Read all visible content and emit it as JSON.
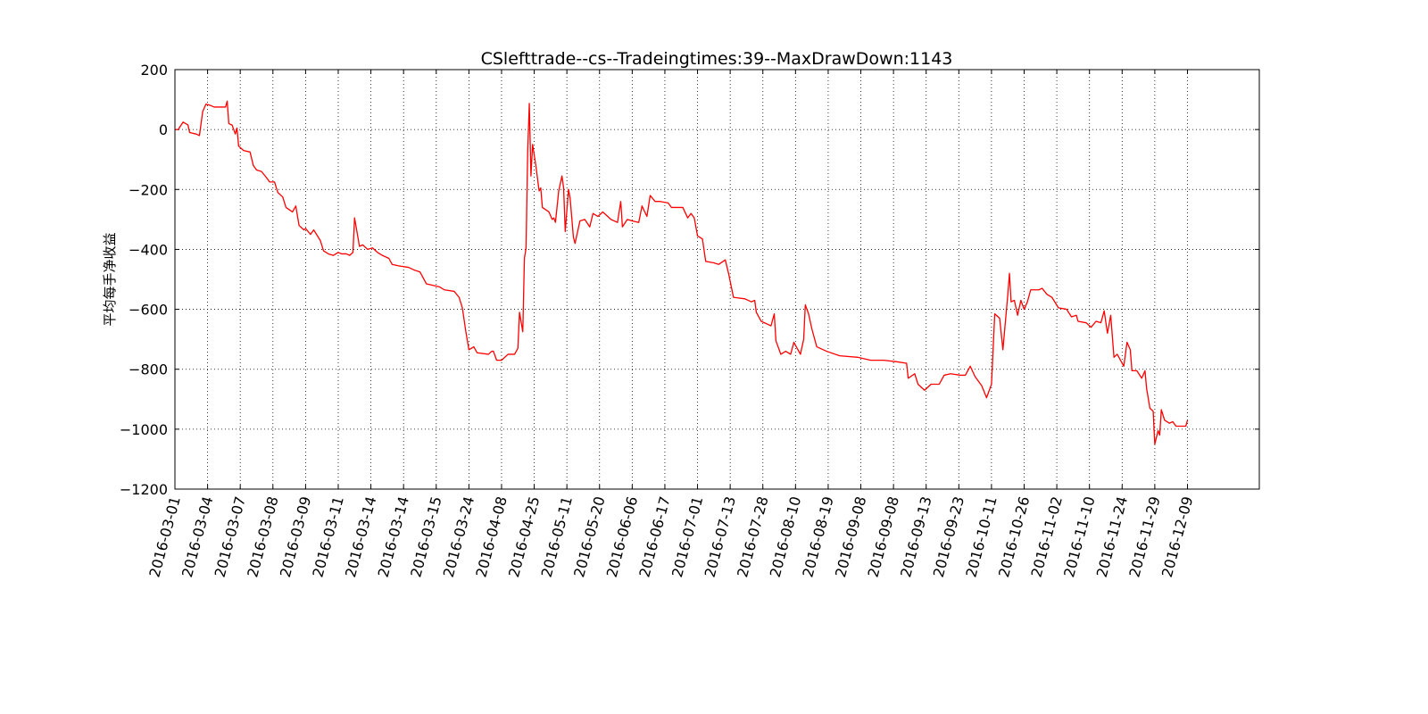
{
  "chart_data": {
    "type": "line",
    "title": "CSlefttrade--cs--Tradeingtimes:39--MaxDrawDown:1143",
    "y_label": "平均每手净收益",
    "color": "#ff0000",
    "grid": true,
    "xlim": [
      0,
      664
    ],
    "ylim": [
      -1200,
      200
    ],
    "yticks": [
      {
        "value": -1200,
        "label": "−1200"
      },
      {
        "value": -1000,
        "label": "−1000"
      },
      {
        "value": -800,
        "label": "−800"
      },
      {
        "value": -600,
        "label": "−600"
      },
      {
        "value": -400,
        "label": "−400"
      },
      {
        "value": -200,
        "label": "−200"
      },
      0,
      200
    ],
    "xticks": [
      {
        "value": 0,
        "label": "2016-03-01"
      },
      {
        "value": 20,
        "label": "2016-03-04"
      },
      {
        "value": 40,
        "label": "2016-03-07"
      },
      {
        "value": 60,
        "label": "2016-03-08"
      },
      {
        "value": 80,
        "label": "2016-03-09"
      },
      {
        "value": 100,
        "label": "2016-03-11"
      },
      {
        "value": 120,
        "label": "2016-03-14"
      },
      {
        "value": 140,
        "label": "2016-03-14"
      },
      {
        "value": 160,
        "label": "2016-03-15"
      },
      {
        "value": 180,
        "label": "2016-03-24"
      },
      {
        "value": 200,
        "label": "2016-04-08"
      },
      {
        "value": 220,
        "label": "2016-04-25"
      },
      {
        "value": 240,
        "label": "2016-05-11"
      },
      {
        "value": 260,
        "label": "2016-05-20"
      },
      {
        "value": 280,
        "label": "2016-06-06"
      },
      {
        "value": 300,
        "label": "2016-06-17"
      },
      {
        "value": 320,
        "label": "2016-07-01"
      },
      {
        "value": 340,
        "label": "2016-07-13"
      },
      {
        "value": 360,
        "label": "2016-07-28"
      },
      {
        "value": 380,
        "label": "2016-08-10"
      },
      {
        "value": 400,
        "label": "2016-08-19"
      },
      {
        "value": 420,
        "label": "2016-09-08"
      },
      {
        "value": 440,
        "label": "2016-09-08"
      },
      {
        "value": 460,
        "label": "2016-09-13"
      },
      {
        "value": 480,
        "label": "2016-09-23"
      },
      {
        "value": 500,
        "label": "2016-10-11"
      },
      {
        "value": 520,
        "label": "2016-10-26"
      },
      {
        "value": 540,
        "label": "2016-11-02"
      },
      {
        "value": 560,
        "label": "2016-11-10"
      },
      {
        "value": 580,
        "label": "2016-11-24"
      },
      {
        "value": 600,
        "label": "2016-11-29"
      },
      {
        "value": 620,
        "label": "2016-12-09"
      }
    ],
    "x": [
      0,
      2,
      5,
      8,
      9,
      13,
      15,
      17,
      19,
      22,
      24,
      31,
      32,
      33,
      35,
      37,
      38,
      39,
      42,
      46,
      48,
      50,
      53,
      56,
      58,
      61,
      63,
      66,
      68,
      72,
      74,
      76,
      79,
      80,
      83,
      85,
      89,
      91,
      94,
      97,
      100,
      102,
      105,
      107,
      109,
      110,
      113,
      115,
      118,
      121,
      124,
      127,
      131,
      133,
      137,
      143,
      147,
      150,
      152,
      154,
      158,
      162,
      165,
      171,
      174,
      176,
      178,
      180,
      183,
      185,
      192,
      194,
      195,
      197,
      200,
      204,
      208,
      210,
      211,
      213,
      214,
      215,
      216,
      217,
      218,
      219,
      221,
      223,
      224,
      225,
      229,
      231,
      232,
      233,
      235,
      237,
      238,
      239,
      241,
      242,
      244,
      245,
      248,
      251,
      254,
      256,
      259,
      262,
      265,
      267,
      271,
      273,
      274,
      277,
      280,
      284,
      286,
      289,
      291,
      294,
      297,
      302,
      304,
      311,
      314,
      316,
      318,
      320,
      323,
      325,
      330,
      333,
      337,
      339,
      342,
      349,
      353,
      355,
      356,
      359,
      365,
      367,
      368,
      371,
      374,
      377,
      379,
      383,
      385,
      386,
      388,
      390,
      393,
      399,
      407,
      418,
      426,
      434,
      442,
      448,
      449,
      453,
      455,
      459,
      463,
      468,
      471,
      475,
      481,
      484,
      487,
      490,
      494,
      497,
      500,
      502,
      505,
      507,
      510,
      511,
      512,
      514,
      516,
      518,
      520,
      522,
      524,
      529,
      531,
      534,
      537,
      541,
      546,
      549,
      552,
      553,
      558,
      561,
      564,
      567,
      569,
      571,
      573,
      575,
      577,
      581,
      583,
      585,
      586,
      589,
      592,
      594,
      595,
      597,
      599,
      600,
      602,
      603,
      604,
      606,
      609,
      611,
      613,
      619,
      620
    ],
    "values": [
      0,
      0,
      25,
      15,
      -10,
      -15,
      -20,
      60,
      85,
      80,
      75,
      75,
      95,
      20,
      15,
      -15,
      5,
      -55,
      -70,
      -75,
      -120,
      -135,
      -140,
      -160,
      -175,
      -175,
      -210,
      -225,
      -260,
      -275,
      -255,
      -320,
      -335,
      -330,
      -350,
      -335,
      -370,
      -405,
      -415,
      -420,
      -410,
      -415,
      -415,
      -420,
      -410,
      -295,
      -390,
      -385,
      -400,
      -395,
      -410,
      -420,
      -430,
      -450,
      -455,
      -460,
      -470,
      -475,
      -495,
      -515,
      -520,
      -525,
      -535,
      -540,
      -560,
      -595,
      -670,
      -735,
      -725,
      -745,
      -750,
      -740,
      -740,
      -770,
      -770,
      -750,
      -750,
      -730,
      -610,
      -675,
      -430,
      -395,
      -75,
      87,
      -155,
      -50,
      -120,
      -205,
      -195,
      -260,
      -275,
      -300,
      -295,
      -310,
      -205,
      -155,
      -195,
      -340,
      -200,
      -230,
      -360,
      -380,
      -305,
      -300,
      -325,
      -280,
      -290,
      -275,
      -290,
      -300,
      -310,
      -240,
      -325,
      -300,
      -305,
      -310,
      -255,
      -290,
      -220,
      -240,
      -240,
      -245,
      -260,
      -260,
      -295,
      -280,
      -295,
      -355,
      -365,
      -440,
      -445,
      -450,
      -435,
      -480,
      -560,
      -565,
      -575,
      -570,
      -610,
      -640,
      -655,
      -615,
      -705,
      -750,
      -740,
      -750,
      -710,
      -750,
      -700,
      -585,
      -615,
      -665,
      -725,
      -740,
      -755,
      -760,
      -770,
      -770,
      -775,
      -780,
      -830,
      -815,
      -850,
      -870,
      -850,
      -850,
      -820,
      -815,
      -820,
      -820,
      -790,
      -825,
      -855,
      -895,
      -850,
      -615,
      -630,
      -735,
      -550,
      -480,
      -575,
      -570,
      -620,
      -570,
      -600,
      -575,
      -535,
      -535,
      -530,
      -550,
      -560,
      -595,
      -600,
      -625,
      -620,
      -640,
      -645,
      -660,
      -640,
      -645,
      -605,
      -680,
      -620,
      -760,
      -750,
      -790,
      -710,
      -735,
      -805,
      -805,
      -830,
      -805,
      -865,
      -930,
      -940,
      -1050,
      -1005,
      -1020,
      -935,
      -970,
      -980,
      -975,
      -990,
      -990,
      -970
    ]
  }
}
